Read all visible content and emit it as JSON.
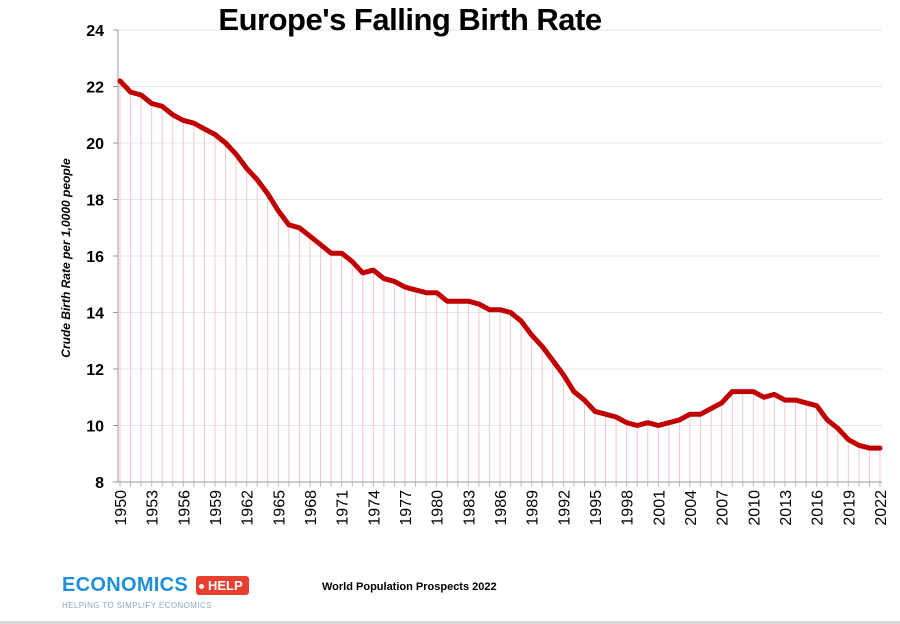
{
  "chart_data": {
    "type": "line",
    "title": "Europe's Falling Birth Rate",
    "ylabel": "Crude Birth Rate per 1,0000 people",
    "xlabel": "",
    "ylim": [
      8,
      24
    ],
    "yticks": [
      8,
      10,
      12,
      14,
      16,
      18,
      20,
      22,
      24
    ],
    "x": [
      1950,
      1951,
      1952,
      1953,
      1954,
      1955,
      1956,
      1957,
      1958,
      1959,
      1960,
      1961,
      1962,
      1963,
      1964,
      1965,
      1966,
      1967,
      1968,
      1969,
      1970,
      1971,
      1972,
      1973,
      1974,
      1975,
      1976,
      1977,
      1978,
      1979,
      1980,
      1981,
      1982,
      1983,
      1984,
      1985,
      1986,
      1987,
      1988,
      1989,
      1990,
      1991,
      1992,
      1993,
      1994,
      1995,
      1996,
      1997,
      1998,
      1999,
      2000,
      2001,
      2002,
      2003,
      2004,
      2005,
      2006,
      2007,
      2008,
      2009,
      2010,
      2011,
      2012,
      2013,
      2014,
      2015,
      2016,
      2017,
      2018,
      2019,
      2020,
      2021,
      2022
    ],
    "xtick_labels": [
      "1950",
      "1953",
      "1956",
      "1959",
      "1962",
      "1965",
      "1968",
      "1971",
      "1974",
      "1977",
      "1980",
      "1983",
      "1986",
      "1989",
      "1992",
      "1995",
      "1998",
      "2001",
      "2004",
      "2007",
      "2010",
      "2013",
      "2016",
      "2019",
      "2022"
    ],
    "series": [
      {
        "name": "",
        "color": "#c00000",
        "values": [
          22.2,
          21.8,
          21.7,
          21.4,
          21.3,
          21.0,
          20.8,
          20.7,
          20.5,
          20.3,
          20.0,
          19.6,
          19.1,
          18.7,
          18.2,
          17.6,
          17.1,
          17.0,
          16.7,
          16.4,
          16.1,
          16.1,
          15.8,
          15.4,
          15.5,
          15.2,
          15.1,
          14.9,
          14.8,
          14.7,
          14.7,
          14.4,
          14.4,
          14.4,
          14.3,
          14.1,
          14.1,
          14.0,
          13.7,
          13.2,
          12.8,
          12.3,
          11.8,
          11.2,
          10.9,
          10.5,
          10.4,
          10.3,
          10.1,
          10.0,
          10.1,
          10.0,
          10.1,
          10.2,
          10.4,
          10.4,
          10.6,
          10.8,
          11.2,
          11.2,
          11.2,
          11.0,
          11.1,
          10.9,
          10.9,
          10.8,
          10.7,
          10.2,
          9.9,
          9.5,
          9.3,
          9.2,
          9.2
        ]
      }
    ],
    "grid": true,
    "drop_lines": true,
    "drop_line_color": "#f4c7c7",
    "source": "World Population Prospects 2022"
  },
  "logo": {
    "main": "ECONOMICS",
    "tag": "HELP",
    "sub": "HELPING TO SIMPLIFY ECONOMICS"
  }
}
